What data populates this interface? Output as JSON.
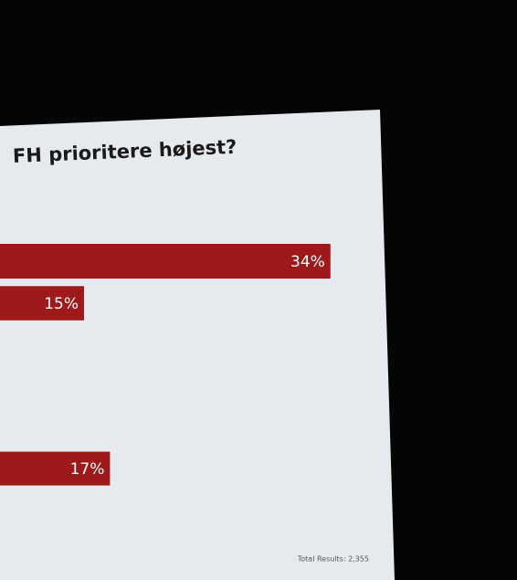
{
  "chart_data": {
    "type": "bar",
    "title": "FH prioritere højest?",
    "values": [
      34,
      15,
      17
    ],
    "value_labels": [
      "34%",
      "15%",
      "17%"
    ],
    "color": "#9e1a1a",
    "annotation": "Total Results: 2,355"
  }
}
